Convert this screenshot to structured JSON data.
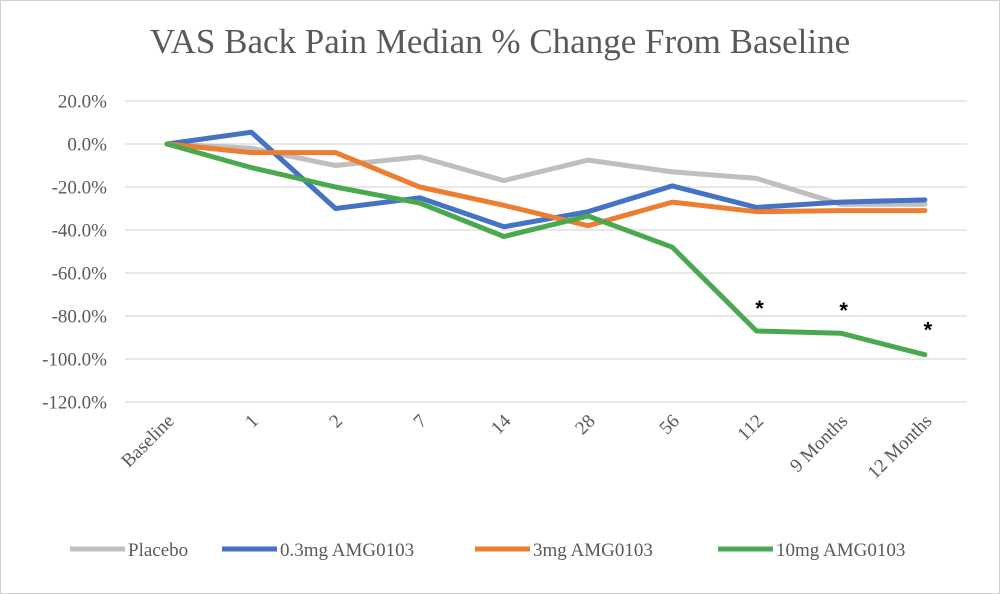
{
  "chart_data": {
    "type": "line",
    "title": "VAS Back Pain Median % Change From Baseline",
    "xlabel": "",
    "ylabel": "",
    "categories": [
      "Baseline",
      "1",
      "2",
      "7",
      "14",
      "28",
      "56",
      "112",
      "9 Months",
      "12 Months"
    ],
    "y_ticks": [
      "20.0%",
      "0.0%",
      "-20.0%",
      "-40.0%",
      "-60.0%",
      "-80.0%",
      "-100.0%",
      "-120.0%"
    ],
    "ylim": [
      -120,
      20
    ],
    "grid": true,
    "legend_position": "bottom",
    "series": [
      {
        "name": "Placebo",
        "color": "#bfbfbf",
        "values": [
          0,
          -2,
          -10,
          -6,
          -17,
          -7.5,
          -13,
          -16,
          -28,
          -28
        ]
      },
      {
        "name": "0.3mg AMG0103",
        "color": "#4472c4",
        "values": [
          0,
          5.5,
          -30,
          -25,
          -38.5,
          -31.5,
          -19.5,
          -29.5,
          -27,
          -26
        ]
      },
      {
        "name": "3mg AMG0103",
        "color": "#ed7d31",
        "values": [
          0,
          -4,
          -4,
          -20,
          -28.5,
          -38,
          -27,
          -31.5,
          -31,
          -31
        ]
      },
      {
        "name": "10mg AMG0103",
        "color": "#4aa84f",
        "values": [
          0,
          -11,
          -20,
          -27.5,
          -43,
          -33.5,
          -48,
          -87,
          -88,
          -98
        ]
      }
    ],
    "annotations": [
      {
        "text": "*",
        "category": "112",
        "value": -80
      },
      {
        "text": "*",
        "category": "9 Months",
        "value": -81
      },
      {
        "text": "*",
        "category": "12 Months",
        "value": -90
      }
    ]
  }
}
